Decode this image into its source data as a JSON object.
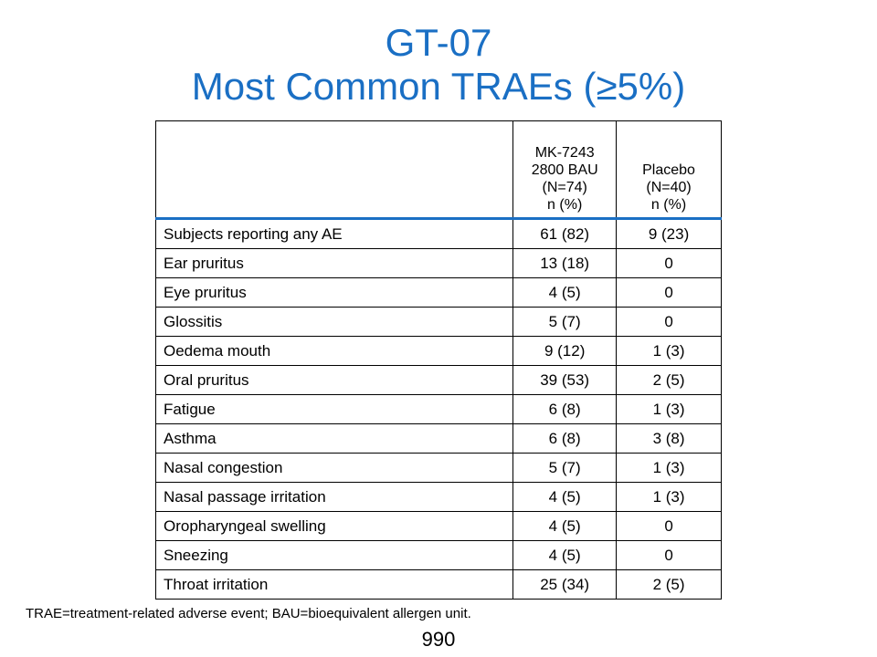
{
  "title": {
    "line1": "GT-07",
    "line2": "Most Common TRAEs (≥5%)"
  },
  "table": {
    "header": {
      "col1": "",
      "col2": [
        "MK-7243",
        "2800 BAU",
        "(N=74)",
        "n (%)"
      ],
      "col3": [
        "Placebo",
        "(N=40)",
        "n (%)"
      ]
    },
    "rows": [
      {
        "event": "Subjects reporting any AE",
        "mk": "61 (82)",
        "placebo": "9 (23)"
      },
      {
        "event": "Ear pruritus",
        "mk": "13 (18)",
        "placebo": "0"
      },
      {
        "event": "Eye pruritus",
        "mk": "4 (5)",
        "placebo": "0"
      },
      {
        "event": "Glossitis",
        "mk": "5 (7)",
        "placebo": "0"
      },
      {
        "event": "Oedema mouth",
        "mk": "9 (12)",
        "placebo": "1 (3)"
      },
      {
        "event": "Oral pruritus",
        "mk": "39 (53)",
        "placebo": "2 (5)"
      },
      {
        "event": "Fatigue",
        "mk": "6 (8)",
        "placebo": "1 (3)"
      },
      {
        "event": "Asthma",
        "mk": "6 (8)",
        "placebo": "3 (8)"
      },
      {
        "event": "Nasal congestion",
        "mk": "5 (7)",
        "placebo": "1 (3)"
      },
      {
        "event": "Nasal passage irritation",
        "mk": "4 (5)",
        "placebo": "1 (3)"
      },
      {
        "event": "Oropharyngeal swelling",
        "mk": "4 (5)",
        "placebo": "0"
      },
      {
        "event": "Sneezing",
        "mk": "4 (5)",
        "placebo": "0"
      },
      {
        "event": "Throat irritation",
        "mk": "25 (34)",
        "placebo": "2 (5)"
      }
    ]
  },
  "footnote": "TRAE=treatment-related adverse event; BAU=bioequivalent allergen unit.",
  "page_number": "990",
  "colors": {
    "title": "#1a6fc4",
    "header_rule": "#1a6fc4"
  }
}
